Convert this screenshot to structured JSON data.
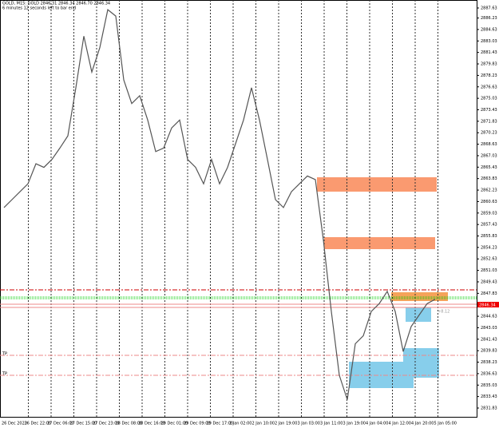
{
  "header": {
    "symbol_line": "GOLD, M15: GOLD 2846.31 2846.34 2846.70 2846.34",
    "timer_line": "6 minutes 12 seconds left to bar end"
  },
  "price_axis": {
    "range": [
      2831.83,
      2887.63
    ],
    "labels": [
      2887.63,
      2886.23,
      2884.63,
      2883.03,
      2881.43,
      2879.83,
      2878.23,
      2876.63,
      2875.03,
      2873.43,
      2871.83,
      2870.23,
      2868.63,
      2867.03,
      2865.43,
      2863.83,
      2862.23,
      2860.63,
      2859.03,
      2857.43,
      2855.83,
      2854.23,
      2852.63,
      2851.03,
      2849.43,
      2847.83,
      2846.23,
      2844.63,
      2843.03,
      2841.43,
      2839.83,
      2838.23,
      2836.63,
      2835.03,
      2833.43,
      2831.83
    ]
  },
  "time_axis": {
    "labels": [
      "26 Dec 2023",
      "26 Dec 22:00",
      "27 Dec 06:00",
      "27 Dec 15:00",
      "27 Dec 23:00",
      "28 Dec 08:00",
      "28 Dec 16:00",
      "29 Dec 01:00",
      "29 Dec 09:00",
      "29 Dec 17:00",
      "2 Jan 02:00",
      "2 Jan 10:00",
      "2 Jan 19:00",
      "3 Jan 03:00",
      "3 Jan 11:00",
      "3 Jan 19:00",
      "4 Jan 04:00",
      "4 Jan 12:00",
      "4 Jan 20:00",
      "5 Jan 05:00"
    ]
  },
  "price_series": [
    2859.8,
    2860.9,
    2862.0,
    2863.1,
    2865.9,
    2865.4,
    2866.5,
    2868.1,
    2869.8,
    2876.5,
    2883.7,
    2878.7,
    2882.1,
    2887.4,
    2886.5,
    2877.6,
    2874.3,
    2875.4,
    2872.0,
    2867.6,
    2868.1,
    2870.9,
    2872.0,
    2866.5,
    2865.4,
    2863.1,
    2866.5,
    2863.1,
    2865.4,
    2868.7,
    2872.0,
    2876.5,
    2872.0,
    2866.5,
    2860.9,
    2859.8,
    2862.0,
    2863.1,
    2864.2,
    2863.7,
    2855.3,
    2845.3,
    2836.4,
    2833.0,
    2840.8,
    2841.9,
    2845.3,
    2846.4,
    2848.1,
    2845.3,
    2839.7,
    2843.2,
    2844.8,
    2846.4,
    2847.0
  ],
  "current_price": "2846.34",
  "tp_labels": [
    "TP",
    "TP"
  ],
  "profit_label": "+8.12"
}
